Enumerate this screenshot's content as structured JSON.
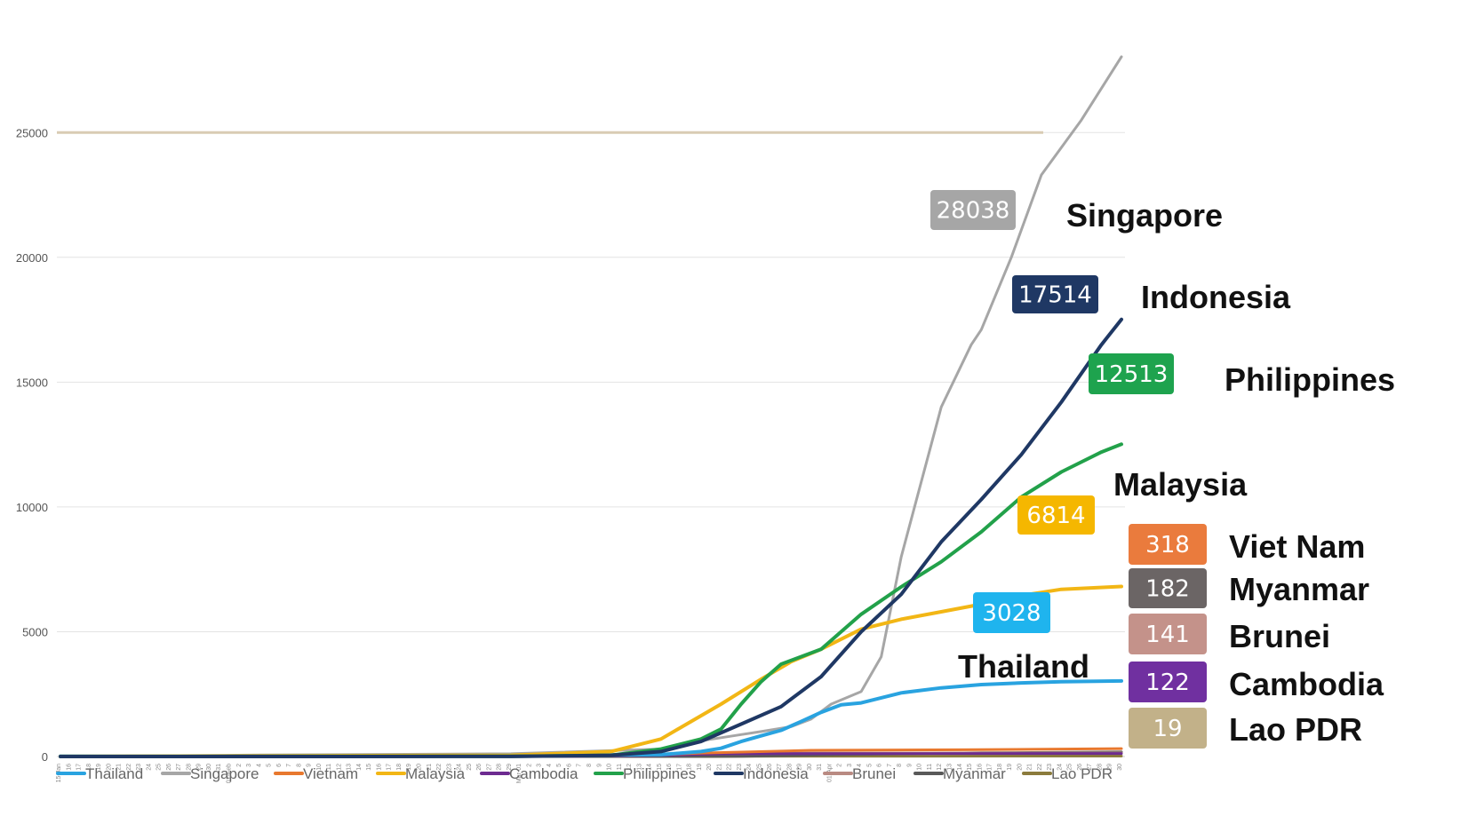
{
  "chart_data": {
    "type": "line",
    "title": "",
    "xlabel": "",
    "ylabel": "",
    "ylim": [
      0,
      28500
    ],
    "yticks": [
      0,
      5000,
      10000,
      15000,
      20000,
      25000
    ],
    "grid": true,
    "legend_position": "bottom",
    "x_start": "15-Jan",
    "x_dates": [
      "15-Jan",
      "01-Feb",
      "Mar-01",
      "01-Apr",
      "01-May"
    ],
    "reference_line": {
      "value": 25000,
      "color": "#d9ccb4"
    },
    "series": [
      {
        "name": "Thailand",
        "color": "#29a3e0",
        "last": 3028,
        "points": [
          [
            0,
            14
          ],
          [
            20,
            19
          ],
          [
            45,
            40
          ],
          [
            60,
            75
          ],
          [
            64,
            200
          ],
          [
            66,
            330
          ],
          [
            68,
            600
          ],
          [
            70,
            830
          ],
          [
            72,
            1050
          ],
          [
            74,
            1400
          ],
          [
            76,
            1770
          ],
          [
            78,
            2070
          ],
          [
            80,
            2150
          ],
          [
            84,
            2550
          ],
          [
            88,
            2750
          ],
          [
            92,
            2880
          ],
          [
            96,
            2950
          ],
          [
            100,
            3000
          ],
          [
            106,
            3028
          ]
        ]
      },
      {
        "name": "Singapore",
        "color": "#a6a6a6",
        "last": 28038,
        "points": [
          [
            0,
            1
          ],
          [
            20,
            60
          ],
          [
            45,
            110
          ],
          [
            60,
            300
          ],
          [
            64,
            630
          ],
          [
            68,
            880
          ],
          [
            70,
            1000
          ],
          [
            73,
            1200
          ],
          [
            75,
            1500
          ],
          [
            77,
            2100
          ],
          [
            80,
            2600
          ],
          [
            82,
            4000
          ],
          [
            84,
            8000
          ],
          [
            86,
            11000
          ],
          [
            88,
            14000
          ],
          [
            91,
            16500
          ],
          [
            92,
            17100
          ],
          [
            95,
            20000
          ],
          [
            98,
            23300
          ],
          [
            102,
            25500
          ],
          [
            106,
            28038
          ]
        ]
      },
      {
        "name": "Vietnam",
        "color": "#e8782e",
        "last": 318,
        "points": [
          [
            0,
            0
          ],
          [
            50,
            20
          ],
          [
            60,
            80
          ],
          [
            64,
            140
          ],
          [
            75,
            250
          ],
          [
            90,
            270
          ],
          [
            106,
            318
          ]
        ]
      },
      {
        "name": "Malaysia",
        "color": "#f2b615",
        "last": 6814,
        "points": [
          [
            0,
            4
          ],
          [
            20,
            20
          ],
          [
            45,
            50
          ],
          [
            55,
            200
          ],
          [
            60,
            700
          ],
          [
            63,
            1400
          ],
          [
            66,
            2100
          ],
          [
            70,
            3100
          ],
          [
            73,
            3800
          ],
          [
            76,
            4300
          ],
          [
            80,
            5100
          ],
          [
            84,
            5500
          ],
          [
            88,
            5800
          ],
          [
            92,
            6100
          ],
          [
            96,
            6450
          ],
          [
            100,
            6700
          ],
          [
            106,
            6814
          ]
        ]
      },
      {
        "name": "Cambodia",
        "color": "#6d2b90",
        "last": 122,
        "points": [
          [
            0,
            0
          ],
          [
            50,
            5
          ],
          [
            60,
            50
          ],
          [
            66,
            105
          ],
          [
            72,
            115
          ],
          [
            106,
            122
          ]
        ]
      },
      {
        "name": "Philippines",
        "color": "#22a14a",
        "last": 12513,
        "points": [
          [
            0,
            1
          ],
          [
            45,
            10
          ],
          [
            55,
            50
          ],
          [
            60,
            300
          ],
          [
            64,
            700
          ],
          [
            66,
            1100
          ],
          [
            68,
            2100
          ],
          [
            70,
            3000
          ],
          [
            72,
            3700
          ],
          [
            76,
            4300
          ],
          [
            80,
            5700
          ],
          [
            84,
            6800
          ],
          [
            88,
            7800
          ],
          [
            92,
            9000
          ],
          [
            96,
            10400
          ],
          [
            100,
            11400
          ],
          [
            104,
            12200
          ],
          [
            106,
            12513
          ]
        ]
      },
      {
        "name": "Indonesia",
        "color": "#1f3864",
        "last": 17514,
        "points": [
          [
            0,
            0
          ],
          [
            45,
            5
          ],
          [
            55,
            50
          ],
          [
            60,
            200
          ],
          [
            64,
            600
          ],
          [
            68,
            1300
          ],
          [
            72,
            2000
          ],
          [
            76,
            3200
          ],
          [
            80,
            5000
          ],
          [
            84,
            6500
          ],
          [
            88,
            8600
          ],
          [
            92,
            10300
          ],
          [
            96,
            12100
          ],
          [
            100,
            14200
          ],
          [
            104,
            16500
          ],
          [
            106,
            17514
          ]
        ]
      },
      {
        "name": "Brunei",
        "color": "#b98a82",
        "last": 141,
        "points": [
          [
            0,
            0
          ],
          [
            50,
            5
          ],
          [
            58,
            50
          ],
          [
            62,
            110
          ],
          [
            68,
            135
          ],
          [
            106,
            141
          ]
        ]
      },
      {
        "name": "Myanmar",
        "color": "#595959",
        "last": 182,
        "points": [
          [
            0,
            0
          ],
          [
            60,
            0
          ],
          [
            68,
            10
          ],
          [
            76,
            60
          ],
          [
            84,
            110
          ],
          [
            92,
            150
          ],
          [
            106,
            182
          ]
        ]
      },
      {
        "name": "Lao PDR",
        "color": "#8b7b3c",
        "last": 19,
        "points": [
          [
            0,
            0
          ],
          [
            65,
            0
          ],
          [
            68,
            10
          ],
          [
            72,
            15
          ],
          [
            106,
            19
          ]
        ]
      }
    ],
    "callouts": [
      {
        "value": "28038",
        "color": "#a6a6a6"
      },
      {
        "value": "17514",
        "color": "#1f3864"
      },
      {
        "value": "12513",
        "color": "#1ea34e"
      },
      {
        "value": "6814",
        "color": "#f5b700"
      },
      {
        "value": "3028",
        "color": "#1fb4ee"
      },
      {
        "value": "318",
        "color": "#ea7b3d"
      },
      {
        "value": "182",
        "color": "#6b6565"
      },
      {
        "value": "141",
        "color": "#c4928a"
      },
      {
        "value": "122",
        "color": "#7030a0"
      },
      {
        "value": "19",
        "color": "#c2b189"
      }
    ],
    "country_labels": [
      "Singapore",
      "Indonesia",
      "Philippines",
      "Malaysia",
      "Viet Nam",
      "Myanmar",
      "Brunei",
      "Cambodia",
      "Lao PDR",
      "Thailand"
    ]
  }
}
